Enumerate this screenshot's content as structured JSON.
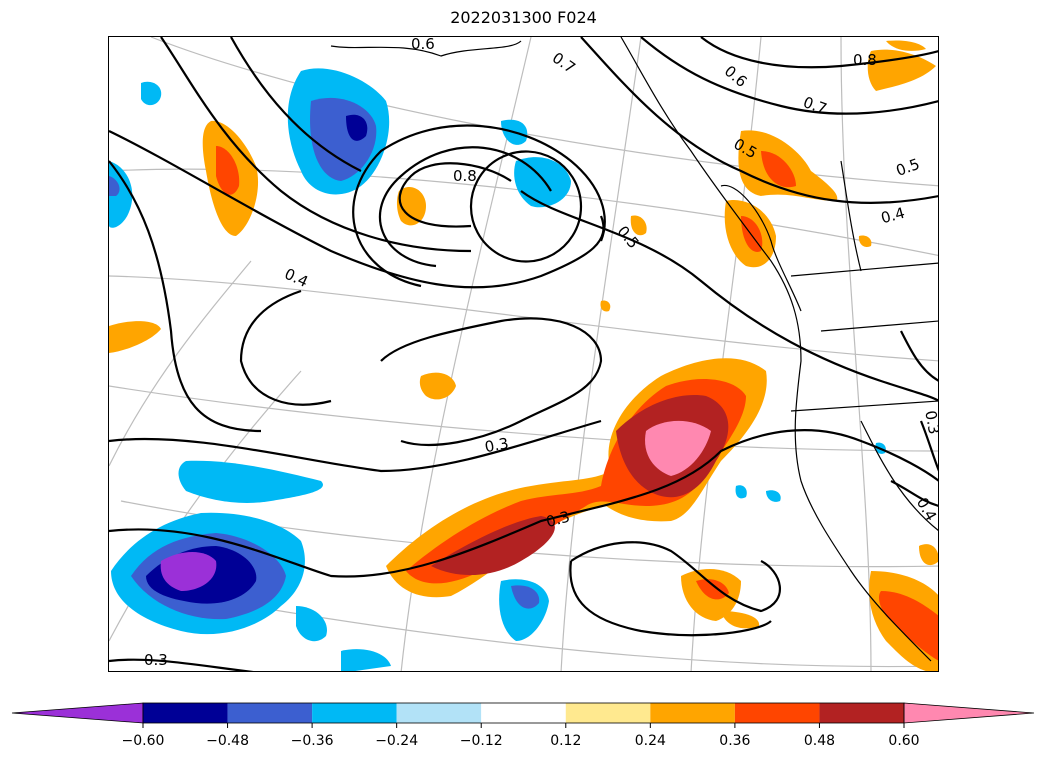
{
  "title": "2022031300 F024",
  "contour_labels": [
    "0.8",
    "0.7",
    "0.6",
    "0.7",
    "0.8",
    "0.6",
    "0.5",
    "0.5",
    "0.4",
    "0.4",
    "0.5",
    "0.3",
    "0.3",
    "0.3",
    "0.3",
    "0.4"
  ],
  "colorbar": {
    "ticks": [
      "−0.60",
      "−0.48",
      "−0.36",
      "−0.24",
      "−0.12",
      "0.12",
      "0.24",
      "0.36",
      "0.48",
      "0.60"
    ],
    "colors": [
      "#9b30d8",
      "#000096",
      "#3c5fd0",
      "#00b9f5",
      "#b2e2f7",
      "#ffffff",
      "#ffe98f",
      "#ffa500",
      "#ff4500",
      "#b22222",
      "#ff88b0"
    ]
  },
  "colors": {
    "neg_strong": "#9b30d8",
    "neg_dark": "#000096",
    "neg_mid": "#3c5fd0",
    "neg_light": "#00b9f5",
    "pos_orange": "#ffa500",
    "pos_red": "#ff4500",
    "pos_darkred": "#b22222",
    "pos_pink": "#ff88b0"
  }
}
